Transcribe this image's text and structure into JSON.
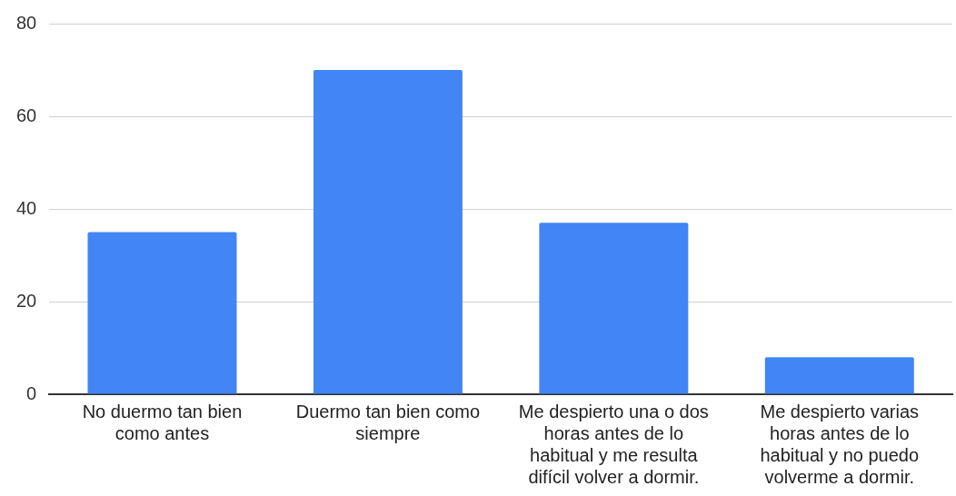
{
  "chart_data": {
    "type": "bar",
    "categories": [
      "No duermo tan bien como antes",
      "Duermo tan bien como siempre",
      "Me despierto una o dos horas antes de lo habitual y me resulta difícil volver a dormir.",
      "Me despierto varias horas antes de lo habitual y no puedo volverme a dormir."
    ],
    "values": [
      35,
      70,
      37,
      8
    ],
    "color": "#4285f4",
    "ylim": [
      0,
      80
    ],
    "yticks": [
      0,
      20,
      40,
      60,
      80
    ],
    "grid": "y"
  }
}
